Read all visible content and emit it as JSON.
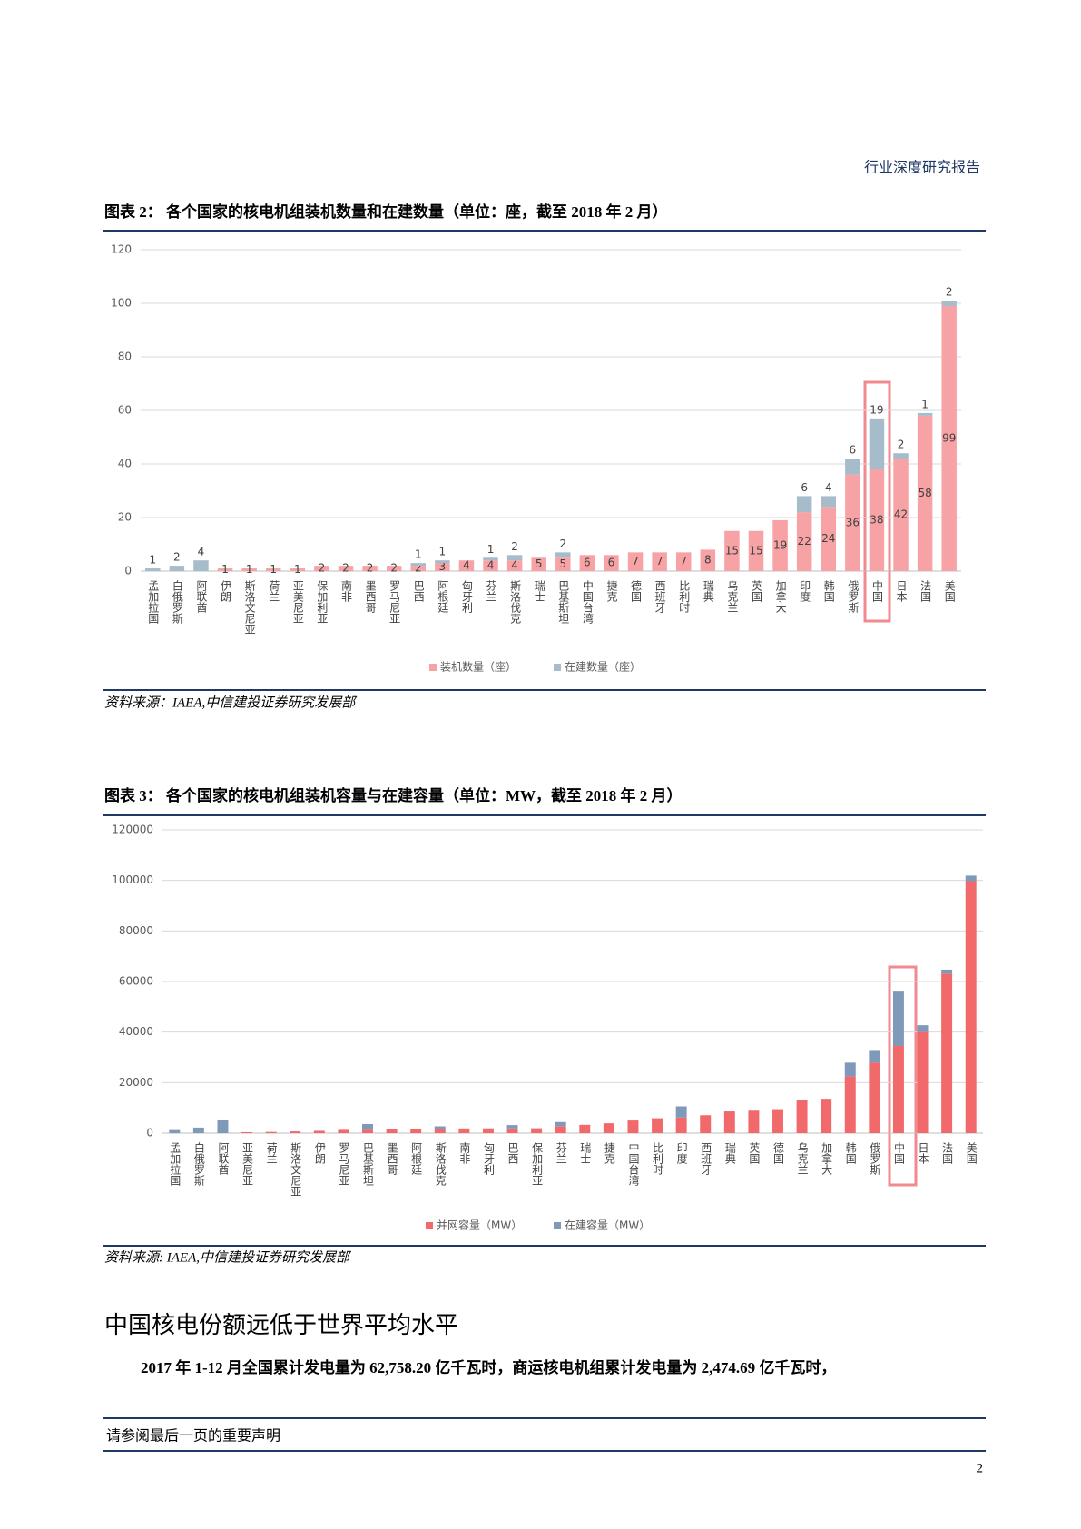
{
  "header": "行业深度研究报告",
  "chart_data": [
    {
      "type": "bar",
      "stacked": true,
      "data_labels": true,
      "title": "图表 2： 各个国家的核电机组装机数量和在建数量（单位：座，截至 2018 年 2 月）",
      "source": "资料来源：IAEA,中信建投证券研究发展部",
      "categories": [
        "孟加拉国",
        "白俄罗斯",
        "阿联酋",
        "伊朗",
        "斯洛文尼亚",
        "荷兰",
        "亚美尼亚",
        "保加利亚",
        "南非",
        "墨西哥",
        "罗马尼亚",
        "巴西",
        "阿根廷",
        "匈牙利",
        "芬兰",
        "斯洛伐克",
        "瑞士",
        "巴基斯坦",
        "中国台湾",
        "捷克",
        "德国",
        "西班牙",
        "比利时",
        "瑞典",
        "乌克兰",
        "英国",
        "加拿大",
        "印度",
        "韩国",
        "俄罗斯",
        "中国",
        "日本",
        "法国",
        "美国"
      ],
      "series": [
        {
          "name": "装机数量（座）",
          "color": "#f7a3a5",
          "values": [
            0,
            0,
            0,
            1,
            1,
            1,
            1,
            2,
            2,
            2,
            2,
            2,
            3,
            4,
            4,
            4,
            5,
            5,
            6,
            6,
            7,
            7,
            7,
            8,
            15,
            15,
            19,
            22,
            24,
            36,
            38,
            42,
            58,
            99
          ]
        },
        {
          "name": "在建数量（座）",
          "color": "#a7bccb",
          "values": [
            1,
            2,
            4,
            0,
            0,
            0,
            0,
            0,
            0,
            0,
            0,
            1,
            1,
            0,
            1,
            2,
            0,
            2,
            0,
            0,
            0,
            0,
            0,
            0,
            0,
            0,
            0,
            6,
            4,
            6,
            19,
            2,
            1,
            2
          ]
        }
      ],
      "ylim": [
        0,
        120
      ],
      "yticks": [
        0,
        20,
        40,
        60,
        80,
        100,
        120
      ],
      "grid": true
    },
    {
      "type": "bar",
      "stacked": true,
      "data_labels": false,
      "title": "图表 3： 各个国家的核电机组装机容量与在建容量（单位：MW，截至 2018 年 2 月）",
      "source": "资料来源: IAEA,中信建投证券研究发展部",
      "categories": [
        "孟加拉国",
        "白俄罗斯",
        "阿联酋",
        "亚美尼亚",
        "荷兰",
        "斯洛文尼亚",
        "伊朗",
        "罗马尼亚",
        "巴基斯坦",
        "墨西哥",
        "阿根廷",
        "斯洛伐克",
        "南非",
        "匈牙利",
        "巴西",
        "保加利亚",
        "芬兰",
        "瑞士",
        "捷克",
        "中国台湾",
        "比利时",
        "印度",
        "西班牙",
        "瑞典",
        "英国",
        "德国",
        "乌克兰",
        "加拿大",
        "韩国",
        "俄罗斯",
        "中国",
        "日本",
        "法国",
        "美国"
      ],
      "series": [
        {
          "name": "并网容量（MW）",
          "color": "#f2696c",
          "values": [
            0,
            0,
            0,
            380,
            480,
            690,
            920,
            1300,
            1300,
            1550,
            1630,
            1800,
            1860,
            1900,
            1900,
            1930,
            2800,
            3300,
            3900,
            5000,
            5900,
            6200,
            7100,
            8600,
            8900,
            9500,
            13100,
            13600,
            22500,
            27900,
            34500,
            40000,
            63100,
            99700
          ]
        },
        {
          "name": "在建容量（MW）",
          "color": "#7f9ab8",
          "values": [
            1200,
            2200,
            5400,
            0,
            0,
            0,
            0,
            0,
            2300,
            0,
            30,
            900,
            0,
            0,
            1300,
            0,
            1600,
            0,
            0,
            0,
            0,
            4400,
            0,
            0,
            0,
            0,
            0,
            0,
            5400,
            5000,
            21500,
            2700,
            1600,
            2200
          ]
        }
      ],
      "ylim": [
        0,
        120000
      ],
      "yticks": [
        0,
        20000,
        40000,
        60000,
        80000,
        100000,
        120000
      ],
      "grid": true
    }
  ],
  "heading": "中国核电份额远低于世界平均水平",
  "paragraph": "2017 年 1-12 月全国累计发电量为 62,758.20 亿千瓦时，商运核电机组累计发电量为 2,474.69 亿千瓦时，",
  "footer": "请参阅最后一页的重要声明",
  "page_number": "2"
}
